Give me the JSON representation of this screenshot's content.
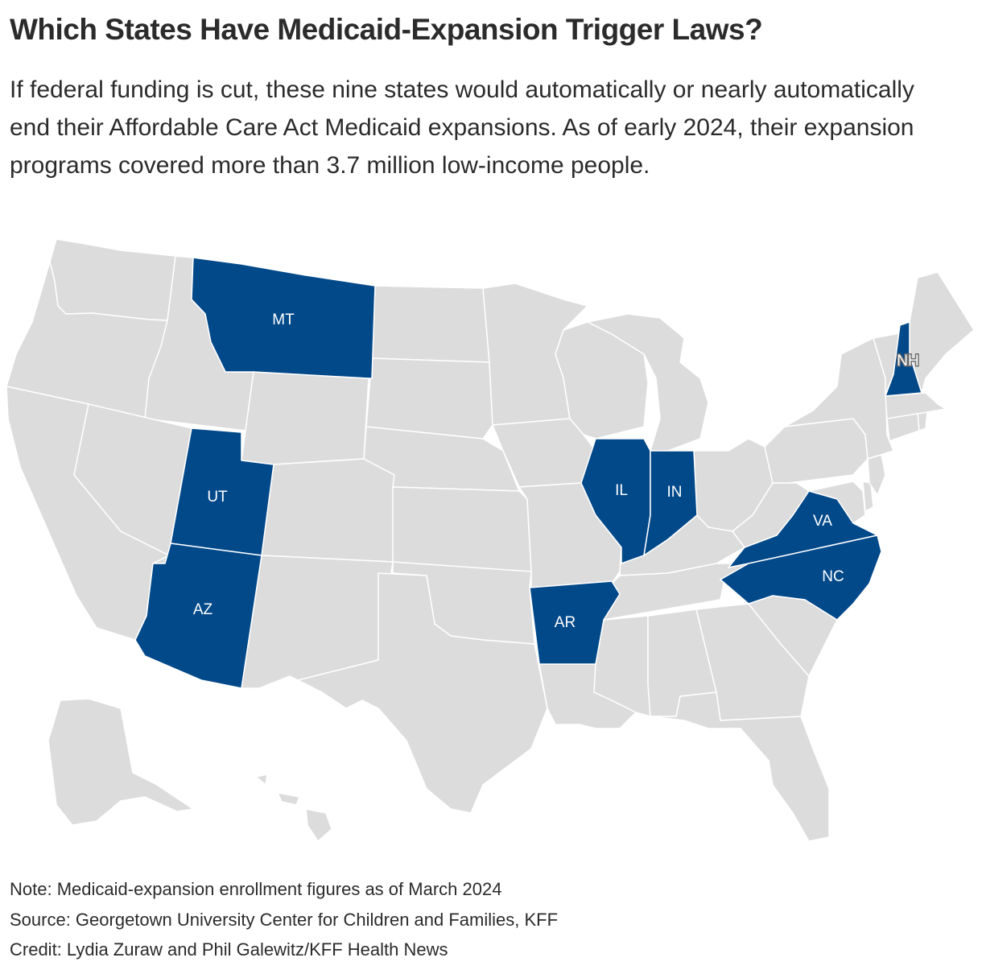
{
  "header": {
    "title": "Which States Have Medicaid-Expansion Trigger Laws?",
    "subtitle": "If federal funding is cut, these nine states would automatically or nearly automatically end their Affordable Care Act Medicaid expansions. As of early 2024, their expansion programs covered more than 3.7 million low-income people."
  },
  "map": {
    "highlight_color": "#02498a",
    "base_color": "#dcdcdc",
    "highlighted_states": [
      {
        "code": "MT",
        "label": "MT"
      },
      {
        "code": "UT",
        "label": "UT"
      },
      {
        "code": "AZ",
        "label": "AZ"
      },
      {
        "code": "AR",
        "label": "AR"
      },
      {
        "code": "IL",
        "label": "IL"
      },
      {
        "code": "IN",
        "label": "IN"
      },
      {
        "code": "VA",
        "label": "VA"
      },
      {
        "code": "NC",
        "label": "NC"
      },
      {
        "code": "NH",
        "label": "NH"
      }
    ]
  },
  "footer": {
    "note": "Note: Medicaid-expansion enrollment figures as of March 2024",
    "source": "Source: Georgetown University Center for Children and Families, KFF",
    "credit": "Credit: Lydia Zuraw and Phil Galewitz/KFF Health News"
  }
}
